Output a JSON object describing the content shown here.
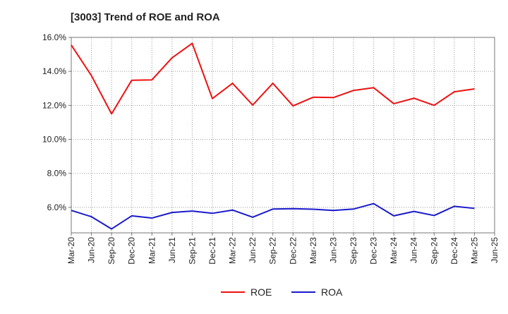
{
  "chart_data": {
    "type": "line",
    "title": "[3003]  Trend of ROE and ROA",
    "xlabel": "",
    "ylabel": "",
    "x": [
      "Mar-20",
      "Jun-20",
      "Sep-20",
      "Dec-20",
      "Mar-21",
      "Jun-21",
      "Sep-21",
      "Dec-21",
      "Mar-22",
      "Jun-22",
      "Sep-22",
      "Dec-22",
      "Mar-23",
      "Jun-23",
      "Sep-23",
      "Dec-23",
      "Mar-24",
      "Jun-24",
      "Sep-24",
      "Dec-24",
      "Mar-25",
      "Jun-25"
    ],
    "ylim": [
      4.5,
      16.0
    ],
    "yticks": [
      6.0,
      8.0,
      10.0,
      12.0,
      14.0,
      16.0
    ],
    "ytick_labels": [
      "6.0%",
      "8.0%",
      "10.0%",
      "12.0%",
      "14.0%",
      "16.0%"
    ],
    "grid": true,
    "legend_position": "bottom-center",
    "series": [
      {
        "name": "ROE",
        "color": "#ee1111",
        "values": [
          15.55,
          13.75,
          11.5,
          13.48,
          13.5,
          14.8,
          15.65,
          12.4,
          13.3,
          12.02,
          13.3,
          11.97,
          12.48,
          12.46,
          12.88,
          13.04,
          12.1,
          12.42,
          12.0,
          12.8,
          12.97,
          null
        ]
      },
      {
        "name": "ROA",
        "color": "#1a1acc",
        "values": [
          5.82,
          5.45,
          4.73,
          5.5,
          5.37,
          5.7,
          5.78,
          5.65,
          5.84,
          5.42,
          5.9,
          5.92,
          5.89,
          5.82,
          5.9,
          6.22,
          5.5,
          5.76,
          5.52,
          6.06,
          5.94,
          null
        ]
      }
    ]
  }
}
